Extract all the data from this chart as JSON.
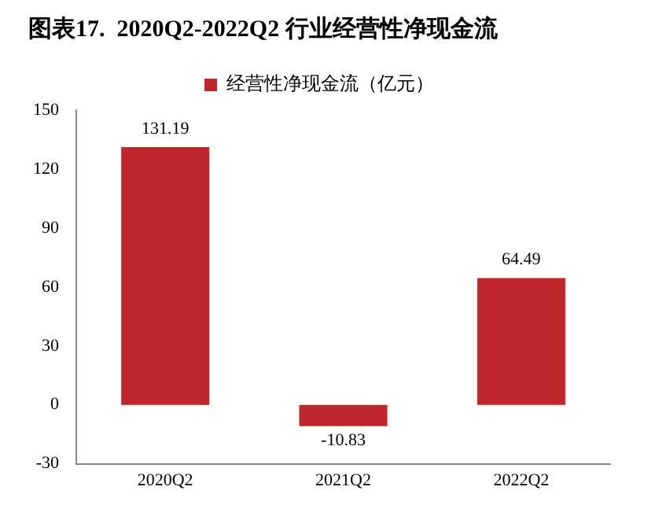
{
  "chart_data": {
    "type": "bar",
    "title": "图表17.  2020Q2-2022Q2 行业经营性净现金流",
    "categories": [
      "2020Q2",
      "2021Q2",
      "2022Q2"
    ],
    "series": [
      {
        "name": "经营性净现金流（亿元）",
        "color": "#c0272d",
        "values": [
          131.19,
          -10.83,
          64.49
        ]
      }
    ],
    "ylim": [
      -30,
      150
    ],
    "yticks": [
      -30,
      0,
      30,
      60,
      90,
      120,
      150
    ],
    "grid": false,
    "legend": "top",
    "data_labels": true
  }
}
